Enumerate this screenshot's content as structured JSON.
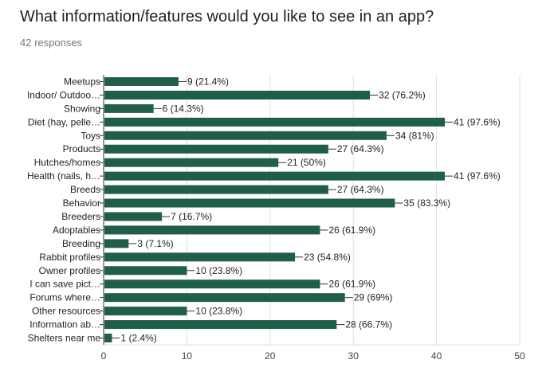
{
  "header": {
    "title": "What information/features would you like to see in an app?",
    "responses": "42 responses"
  },
  "colors": {
    "bar": "#1e5e4b",
    "grid": "#e0e0e0",
    "axis": "#333333"
  },
  "chart_data": {
    "type": "bar",
    "orientation": "horizontal",
    "categories": [
      "Meetups",
      "Indoor/ Outdoo…",
      "Showing",
      "Diet (hay, pelle…",
      "Toys",
      "Products",
      "Hutches/homes",
      "Health (nails, h…",
      "Breeds",
      "Behavior",
      "Breeders",
      "Adoptables",
      "Breeding",
      "Rabbit profiles",
      "Owner profiles",
      "I can save pict…",
      "Forums where…",
      "Other resources",
      "Information ab…",
      "Shelters near me"
    ],
    "values": [
      9,
      32,
      6,
      41,
      34,
      27,
      21,
      41,
      27,
      35,
      7,
      26,
      3,
      23,
      10,
      26,
      29,
      10,
      28,
      1
    ],
    "data_labels": [
      "9 (21.4%)",
      "32 (76.2%)",
      "6 (14.3%)",
      "41 (97.6%)",
      "34 (81%)",
      "27 (64.3%)",
      "21 (50%)",
      "41 (97.6%)",
      "27 (64.3%)",
      "35 (83.3%)",
      "7 (16.7%)",
      "26 (61.9%)",
      "3 (7.1%)",
      "23 (54.8%)",
      "10 (23.8%)",
      "26 (61.9%)",
      "29 (69%)",
      "10 (23.8%)",
      "28 (66.7%)",
      "1 (2.4%)"
    ],
    "xticks": [
      "0",
      "10",
      "20",
      "30",
      "40",
      "50"
    ],
    "xlim": [
      0,
      50
    ],
    "grid": true,
    "legend": "none"
  }
}
